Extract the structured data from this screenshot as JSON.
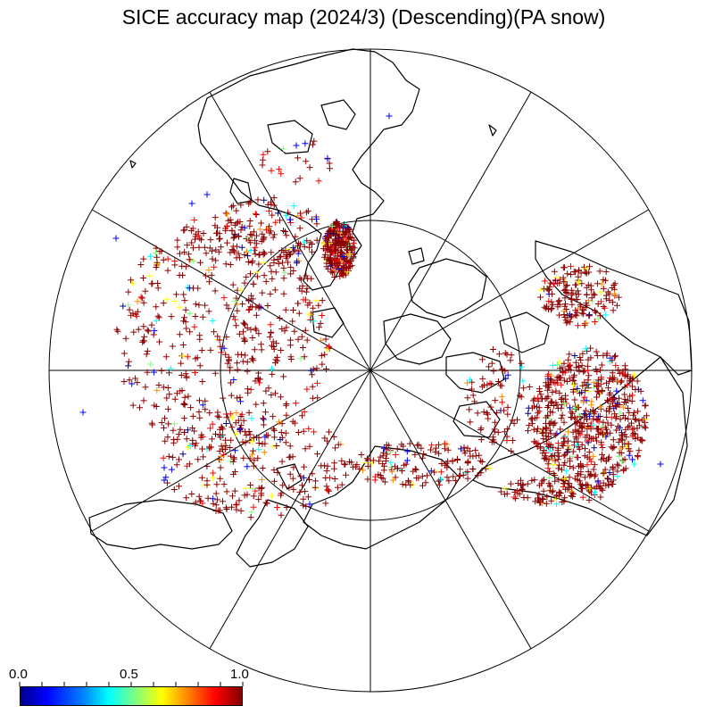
{
  "title": "SICE accuracy map (2024/3) (Descending)(PA snow)",
  "colorbar": {
    "labels": [
      "0.0",
      "0.5",
      "1.0"
    ],
    "min": 0.0,
    "max": 1.0,
    "colormap": "jet",
    "minor_ticks": 10
  },
  "map": {
    "projection": "north-polar-stereographic",
    "meridian_lines": 12,
    "latitude_circle": true,
    "symbol": "+",
    "dominant_color": "#8b0000",
    "symbol_colors": [
      "#8b0000",
      "#ff0000",
      "#ff8c00",
      "#ffff00",
      "#7fff7f",
      "#00ffff",
      "#0000ff",
      "#00008b"
    ]
  }
}
